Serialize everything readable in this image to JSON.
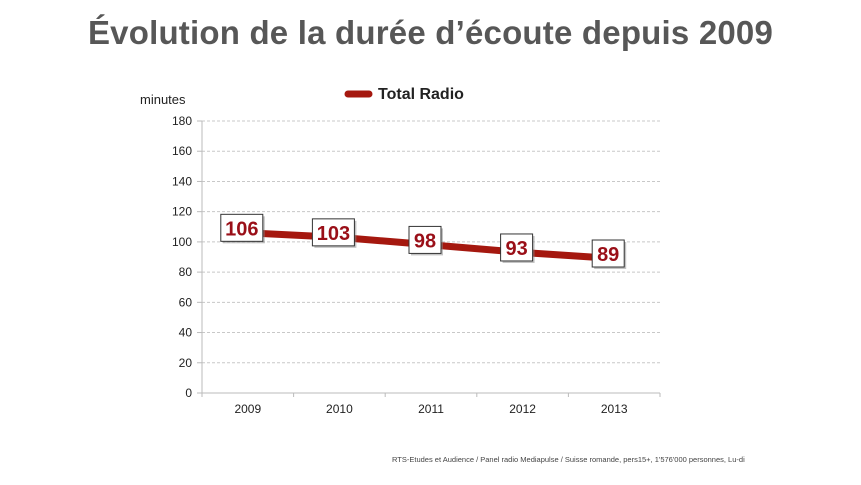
{
  "page": {
    "title": "Évolution de la durée d’écoute depuis 2009",
    "source": "RTS-Etudes et Audience / Panel radio Mediapulse / Suisse romande, pers15+, 1'576'000 personnes, Lu-di"
  },
  "chart_data": {
    "type": "line",
    "title": "Évolution de la durée d’écoute depuis 2009",
    "xlabel": "",
    "ylabel": "minutes",
    "categories": [
      "2009",
      "2010",
      "2011",
      "2012",
      "2013"
    ],
    "series": [
      {
        "name": "Total Radio",
        "values": [
          106,
          103,
          98,
          93,
          89
        ],
        "color": "#a5180f"
      }
    ],
    "data_labels": [
      "106",
      "103",
      "98",
      "93",
      "89"
    ],
    "ylim": [
      0,
      180
    ],
    "yticks": [
      0,
      20,
      40,
      60,
      80,
      100,
      120,
      140,
      160,
      180
    ],
    "ytick_labels": [
      "0",
      "20",
      "40",
      "60",
      "80",
      "100",
      "120",
      "140",
      "160",
      "180"
    ],
    "grid": true,
    "legend": "top-center",
    "label_color": "#9a0f18"
  }
}
